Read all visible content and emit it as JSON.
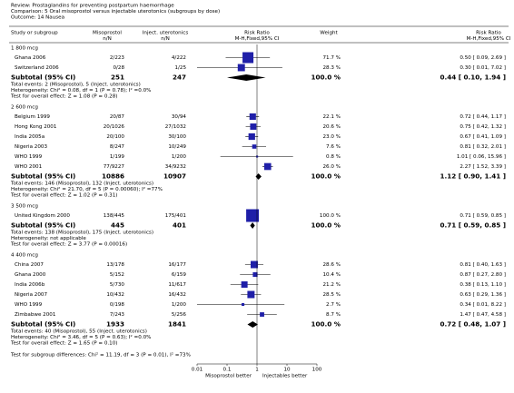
{
  "chart_data": {
    "type": "forest",
    "review": "Review:   Prostaglandins for preventing postpartum haemorrhage",
    "comparison": "Comparison:   5 Oral misoprostol versus injectable uterotonics (subgroups by dose)",
    "outcome": "Outcome:   14 Nausea",
    "columns": {
      "study": "Study or subgroup",
      "exp": "Misoprostol",
      "exp_sub": "n/N",
      "ctrl": "Inject. uterotonics",
      "ctrl_sub": "n/N",
      "plot": "Risk Ratio",
      "plot_sub": "M-H,Fixed,95% CI",
      "weight": "Weight",
      "ci": "Risk Ratio",
      "ci_sub": "M-H,Fixed,95% CI"
    },
    "color": "#1f1fa8",
    "xlog": true,
    "xlim": [
      0.01,
      100
    ],
    "xticks": [
      0.01,
      0.1,
      1,
      10,
      100
    ],
    "x_left_label": "Misoprostol better",
    "x_right_label": "Injectables better",
    "groups": [
      {
        "title": "1 800 mcg",
        "studies": [
          {
            "name": "Ghana 2006",
            "exp": "2/223",
            "ctrl": "4/222",
            "weight": 71.7,
            "weight_label": "71.7 %",
            "ci_label": "0.50 [ 0.09, 2.69 ]",
            "rr": 0.5,
            "lo": 0.09,
            "hi": 2.69
          },
          {
            "name": "Switzerland 2006",
            "exp": "0/28",
            "ctrl": "1/25",
            "weight": 28.3,
            "weight_label": "28.3 %",
            "ci_label": "0.30 [ 0.01, 7.02 ]",
            "rr": 0.3,
            "lo": 0.01,
            "hi": 7.02
          }
        ],
        "subtotal": {
          "name": "Subtotal (95% CI)",
          "exp": 251,
          "ctrl": 247,
          "weight_label": "100.0 %",
          "ci_label": "0.44 [ 0.10, 1.94 ]",
          "rr": 0.44,
          "lo": 0.1,
          "hi": 1.94
        },
        "notes": [
          "Total events: 2 (Misoprostol), 5 (Inject. uterotonics)",
          "Heterogeneity: Chi² = 0.08, df = 1 (P = 0.78); I² =0.0%",
          "Test for overall effect: Z = 1.08 (P = 0.28)"
        ]
      },
      {
        "title": "2 600 mcg",
        "studies": [
          {
            "name": "Belgium 1999",
            "exp": "20/87",
            "ctrl": "30/94",
            "weight": 22.1,
            "weight_label": "22.1 %",
            "ci_label": "0.72 [ 0.44, 1.17 ]",
            "rr": 0.72,
            "lo": 0.44,
            "hi": 1.17
          },
          {
            "name": "Hong Kong 2001",
            "exp": "20/1026",
            "ctrl": "27/1032",
            "weight": 20.6,
            "weight_label": "20.6 %",
            "ci_label": "0.75 [ 0.42, 1.32 ]",
            "rr": 0.75,
            "lo": 0.42,
            "hi": 1.32
          },
          {
            "name": "India 2005a",
            "exp": "20/100",
            "ctrl": "30/100",
            "weight": 23.0,
            "weight_label": "23.0 %",
            "ci_label": "0.67 [ 0.41, 1.09 ]",
            "rr": 0.67,
            "lo": 0.41,
            "hi": 1.09
          },
          {
            "name": "Nigeria 2003",
            "exp": "8/247",
            "ctrl": "10/249",
            "weight": 7.6,
            "weight_label": "7.6 %",
            "ci_label": "0.81 [ 0.32, 2.01 ]",
            "rr": 0.81,
            "lo": 0.32,
            "hi": 2.01
          },
          {
            "name": "WHO 1999",
            "exp": "1/199",
            "ctrl": "1/200",
            "weight": 0.8,
            "weight_label": "0.8 %",
            "ci_label": "1.01 [ 0.06, 15.96 ]",
            "rr": 1.01,
            "lo": 0.06,
            "hi": 15.96
          },
          {
            "name": "WHO 2001",
            "exp": "77/9227",
            "ctrl": "34/9232",
            "weight": 26.0,
            "weight_label": "26.0 %",
            "ci_label": "2.27 [ 1.52, 3.39 ]",
            "rr": 2.27,
            "lo": 1.52,
            "hi": 3.39
          }
        ],
        "subtotal": {
          "name": "Subtotal (95% CI)",
          "exp": 10886,
          "ctrl": 10907,
          "weight_label": "100.0 %",
          "ci_label": "1.12 [ 0.90, 1.41 ]",
          "rr": 1.12,
          "lo": 0.9,
          "hi": 1.41
        },
        "notes": [
          "Total events: 146 (Misoprostol), 132 (Inject. uterotonics)",
          "Heterogeneity: Chi² = 21.70, df = 5 (P = 0.00060); I² =77%",
          "Test for overall effect: Z = 1.02 (P = 0.31)"
        ]
      },
      {
        "title": "3 500 mcg",
        "studies": [
          {
            "name": "United Kingdom 2000",
            "exp": "138/445",
            "ctrl": "175/401",
            "weight": 100.0,
            "weight_label": "100.0 %",
            "ci_label": "0.71 [ 0.59, 0.85 ]",
            "rr": 0.71,
            "lo": 0.59,
            "hi": 0.85
          }
        ],
        "subtotal": {
          "name": "Subtotal (95% CI)",
          "exp": 445,
          "ctrl": 401,
          "weight_label": "100.0 %",
          "ci_label": "0.71 [ 0.59, 0.85 ]",
          "rr": 0.71,
          "lo": 0.59,
          "hi": 0.85
        },
        "notes": [
          "Total events: 138 (Misoprostol), 175 (Inject. uterotonics)",
          "Heterogeneity: not applicable",
          "Test for overall effect: Z = 3.77 (P = 0.00016)"
        ]
      },
      {
        "title": "4 400 mcg",
        "studies": [
          {
            "name": "China 2007",
            "exp": "13/178",
            "ctrl": "16/177",
            "weight": 28.6,
            "weight_label": "28.6 %",
            "ci_label": "0.81 [ 0.40, 1.63 ]",
            "rr": 0.81,
            "lo": 0.4,
            "hi": 1.63
          },
          {
            "name": "Ghana 2000",
            "exp": "5/152",
            "ctrl": "6/159",
            "weight": 10.4,
            "weight_label": "10.4 %",
            "ci_label": "0.87 [ 0.27, 2.80 ]",
            "rr": 0.87,
            "lo": 0.27,
            "hi": 2.8
          },
          {
            "name": "India 2006b",
            "exp": "5/730",
            "ctrl": "11/617",
            "weight": 21.2,
            "weight_label": "21.2 %",
            "ci_label": "0.38 [ 0.13, 1.10 ]",
            "rr": 0.38,
            "lo": 0.13,
            "hi": 1.1
          },
          {
            "name": "Nigeria 2007",
            "exp": "10/432",
            "ctrl": "16/432",
            "weight": 28.5,
            "weight_label": "28.5 %",
            "ci_label": "0.63 [ 0.29, 1.36 ]",
            "rr": 0.63,
            "lo": 0.29,
            "hi": 1.36
          },
          {
            "name": "WHO 1999",
            "exp": "0/198",
            "ctrl": "1/200",
            "weight": 2.7,
            "weight_label": "2.7 %",
            "ci_label": "0.34 [ 0.01, 8.22 ]",
            "rr": 0.34,
            "lo": 0.01,
            "hi": 8.22
          },
          {
            "name": "Zimbabwe 2001",
            "exp": "7/243",
            "ctrl": "5/256",
            "weight": 8.7,
            "weight_label": "8.7 %",
            "ci_label": "1.47 [ 0.47, 4.58 ]",
            "rr": 1.47,
            "lo": 0.47,
            "hi": 4.58
          }
        ],
        "subtotal": {
          "name": "Subtotal (95% CI)",
          "exp": 1933,
          "ctrl": 1841,
          "weight_label": "100.0 %",
          "ci_label": "0.72 [ 0.48, 1.07 ]",
          "rr": 0.72,
          "lo": 0.48,
          "hi": 1.07
        },
        "notes": [
          "Total events: 40 (Misoprostol), 55 (Inject. uterotonics)",
          "Heterogeneity: Chi² = 3.46, df = 5 (P = 0.63); I² =0.0%",
          "Test for overall effect: Z = 1.65 (P = 0.10)"
        ]
      }
    ],
    "subgroup_test": "Test for subgroup differences: Chi² = 11.19, df = 3 (P = 0.01), I² =73%"
  }
}
